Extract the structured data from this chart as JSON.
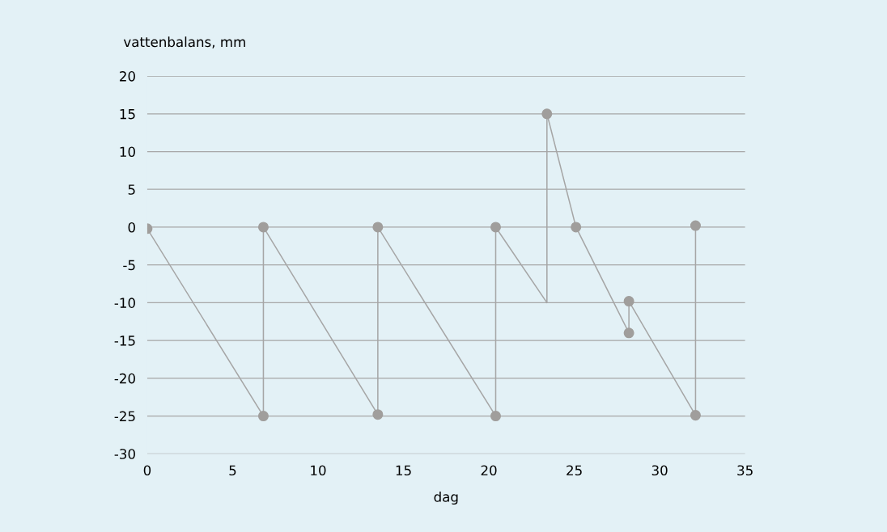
{
  "chart_data": {
    "type": "line",
    "xlabel": "dag",
    "ylabel": "vattenbalans, mm",
    "series": [
      {
        "color": "#a6a6a6",
        "marker": "none",
        "x": [
          0,
          6.8,
          6.8,
          13.5,
          13.5,
          20.4,
          20.4,
          23.4,
          23.4,
          25.1,
          28.2,
          28.2,
          32.1,
          32.1
        ],
        "values": [
          -0.2,
          -25,
          0,
          -24.8,
          0,
          -25,
          0,
          -10,
          15,
          0,
          -14,
          -9.8,
          -24.9,
          0.2
        ]
      },
      {
        "type": "scatter",
        "color": "#a09e9c",
        "marker": "circle",
        "x": [
          0,
          6.8,
          6.8,
          13.5,
          13.5,
          20.4,
          20.4,
          23.4,
          25.1,
          28.2,
          28.2,
          32.1,
          32.1
        ],
        "values": [
          -0.2,
          -25,
          0,
          -24.8,
          0,
          -25,
          0,
          15,
          0,
          -14,
          -9.8,
          -24.9,
          0.2
        ]
      }
    ],
    "xlim": [
      0,
      35
    ],
    "xticks": [
      0,
      5,
      10,
      15,
      20,
      25,
      30,
      35
    ],
    "ylim": [
      -30,
      20
    ],
    "yticks": [
      -30,
      -25,
      -20,
      -15,
      -10,
      -5,
      0,
      5,
      10,
      15,
      20
    ],
    "grid": "y"
  }
}
